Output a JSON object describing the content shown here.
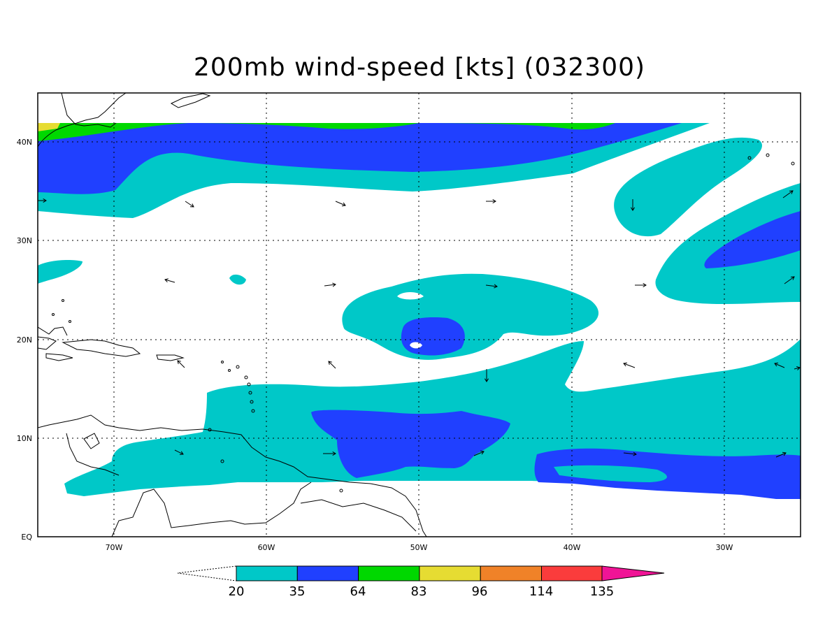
{
  "title": "200mb wind-speed [kts] (032300)",
  "axes": {
    "x_ticks": [
      "70W",
      "60W",
      "50W",
      "40W",
      "30W"
    ],
    "y_ticks": [
      "EQ",
      "10N",
      "20N",
      "30N",
      "40N"
    ]
  },
  "legend": {
    "labels": [
      "20",
      "35",
      "64",
      "83",
      "96",
      "114",
      "135"
    ],
    "colors": [
      "#00c8c8",
      "#2040ff",
      "#00d800",
      "#e6dc32",
      "#f08228",
      "#fa3c3c",
      "#f01496"
    ]
  },
  "colors": {
    "frame": "#000000",
    "coast": "#000000",
    "background": "#ffffff"
  },
  "icons": [
    "wind-vector-arrow"
  ]
}
